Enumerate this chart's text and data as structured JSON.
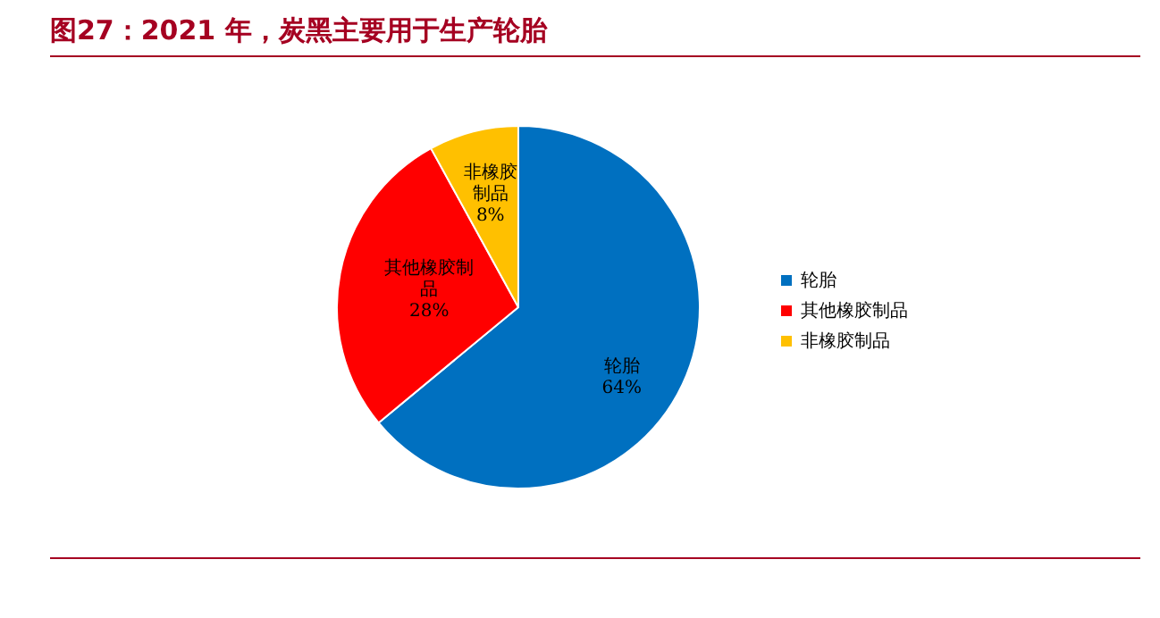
{
  "chart_data": {
    "type": "pie",
    "title": "图27：2021 年，炭黑主要用于生产轮胎",
    "categories": [
      "轮胎",
      "其他橡胶制品",
      "非橡胶制品"
    ],
    "values": [
      64,
      28,
      8
    ],
    "colors": [
      "#0070c0",
      "#ff0000",
      "#ffc000"
    ],
    "value_labels": [
      "64%",
      "28%",
      "8%"
    ],
    "legend": "right"
  }
}
